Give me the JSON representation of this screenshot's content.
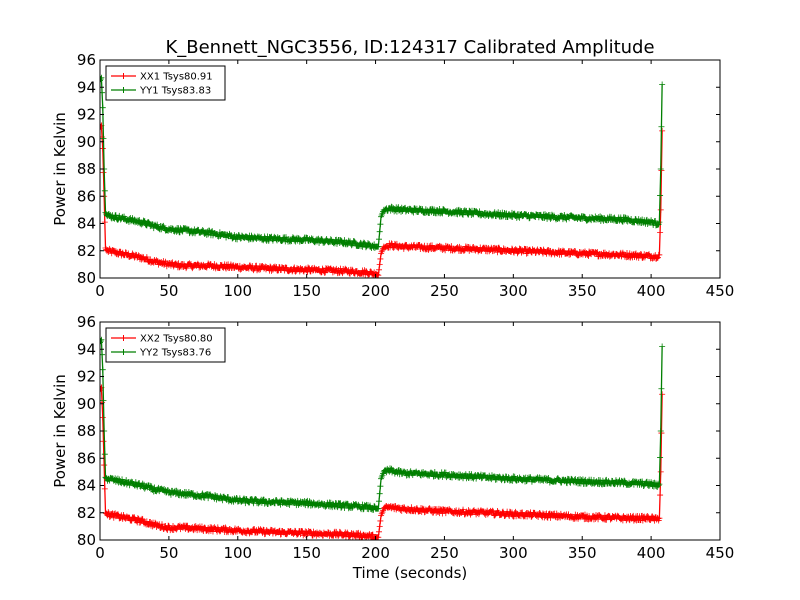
{
  "title": "K_Bennett_NGC3556, ID:124317 Calibrated Amplitude",
  "colors": {
    "xx": "#ff0000",
    "yy": "#007f00"
  },
  "chart_data": [
    {
      "type": "line",
      "ylabel": "Power in Kelvin",
      "xlabel": "",
      "xlim": [
        0,
        450
      ],
      "ylim": [
        80,
        96
      ],
      "xticks": [
        0,
        50,
        100,
        150,
        200,
        250,
        300,
        350,
        400,
        450
      ],
      "yticks": [
        80,
        82,
        84,
        86,
        88,
        90,
        92,
        94,
        96
      ],
      "grid": false,
      "legend_position": "top-left",
      "series": [
        {
          "name": "XX1 Tsys80.91",
          "color": "#ff0000",
          "x": [
            0,
            1,
            2,
            3,
            4,
            5,
            10,
            20,
            30,
            40,
            50,
            60,
            80,
            100,
            120,
            150,
            180,
            195,
            200,
            202,
            204,
            206,
            210,
            220,
            250,
            280,
            300,
            350,
            380,
            400,
            404,
            406,
            407,
            408
          ],
          "y": [
            91,
            91.2,
            89.5,
            86,
            82.2,
            82.0,
            81.9,
            81.7,
            81.5,
            81.2,
            81.0,
            80.9,
            80.9,
            80.8,
            80.7,
            80.6,
            80.5,
            80.4,
            80.3,
            80.2,
            81.8,
            82.3,
            82.4,
            82.3,
            82.2,
            82.1,
            82.0,
            81.8,
            81.7,
            81.6,
            81.6,
            81.7,
            85,
            90.8
          ]
        },
        {
          "name": "YY1 Tsys83.83",
          "color": "#007f00",
          "x": [
            0,
            1,
            2,
            3,
            4,
            5,
            10,
            20,
            30,
            40,
            50,
            60,
            80,
            100,
            120,
            150,
            180,
            195,
            200,
            202,
            204,
            206,
            210,
            220,
            250,
            280,
            300,
            350,
            380,
            400,
            404,
            406,
            407,
            408
          ],
          "y": [
            94.5,
            94.7,
            92.5,
            88,
            84.8,
            84.6,
            84.5,
            84.3,
            84.1,
            83.8,
            83.6,
            83.5,
            83.3,
            83.0,
            82.9,
            82.8,
            82.6,
            82.4,
            82.3,
            82.3,
            84.5,
            85.0,
            85.1,
            85.0,
            84.9,
            84.7,
            84.6,
            84.4,
            84.3,
            84.1,
            84.0,
            84.1,
            88,
            94.2
          ]
        }
      ]
    },
    {
      "type": "line",
      "ylabel": "Power in Kelvin",
      "xlabel": "Time (seconds)",
      "xlim": [
        0,
        450
      ],
      "ylim": [
        80,
        96
      ],
      "xticks": [
        0,
        50,
        100,
        150,
        200,
        250,
        300,
        350,
        400,
        450
      ],
      "yticks": [
        80,
        82,
        84,
        86,
        88,
        90,
        92,
        94,
        96
      ],
      "grid": false,
      "legend_position": "top-left",
      "series": [
        {
          "name": "XX2 Tsys80.80",
          "color": "#ff0000",
          "x": [
            0,
            1,
            2,
            3,
            4,
            5,
            10,
            20,
            30,
            40,
            50,
            60,
            80,
            100,
            120,
            150,
            180,
            195,
            200,
            202,
            204,
            206,
            210,
            220,
            250,
            280,
            300,
            350,
            380,
            400,
            404,
            406,
            407,
            408
          ],
          "y": [
            91,
            91.2,
            89.0,
            85.5,
            82.0,
            81.9,
            81.8,
            81.6,
            81.4,
            81.1,
            80.9,
            80.9,
            80.8,
            80.7,
            80.6,
            80.5,
            80.4,
            80.3,
            80.2,
            80.2,
            81.8,
            82.3,
            82.4,
            82.3,
            82.1,
            82.0,
            81.9,
            81.7,
            81.6,
            81.6,
            81.5,
            81.6,
            85,
            90.7
          ]
        },
        {
          "name": "YY2 Tsys83.76",
          "color": "#007f00",
          "x": [
            0,
            1,
            2,
            3,
            4,
            5,
            10,
            20,
            30,
            40,
            50,
            60,
            80,
            100,
            120,
            150,
            180,
            195,
            200,
            202,
            204,
            206,
            210,
            220,
            250,
            280,
            300,
            350,
            380,
            400,
            404,
            406,
            407,
            408
          ],
          "y": [
            94.5,
            94.7,
            92.5,
            88,
            84.6,
            84.5,
            84.4,
            84.2,
            84.0,
            83.7,
            83.5,
            83.4,
            83.2,
            82.9,
            82.8,
            82.7,
            82.5,
            82.4,
            82.3,
            82.3,
            84.5,
            85.0,
            85.1,
            84.9,
            84.8,
            84.6,
            84.5,
            84.3,
            84.2,
            84.1,
            84.0,
            84.1,
            88,
            94.2
          ]
        }
      ]
    }
  ]
}
